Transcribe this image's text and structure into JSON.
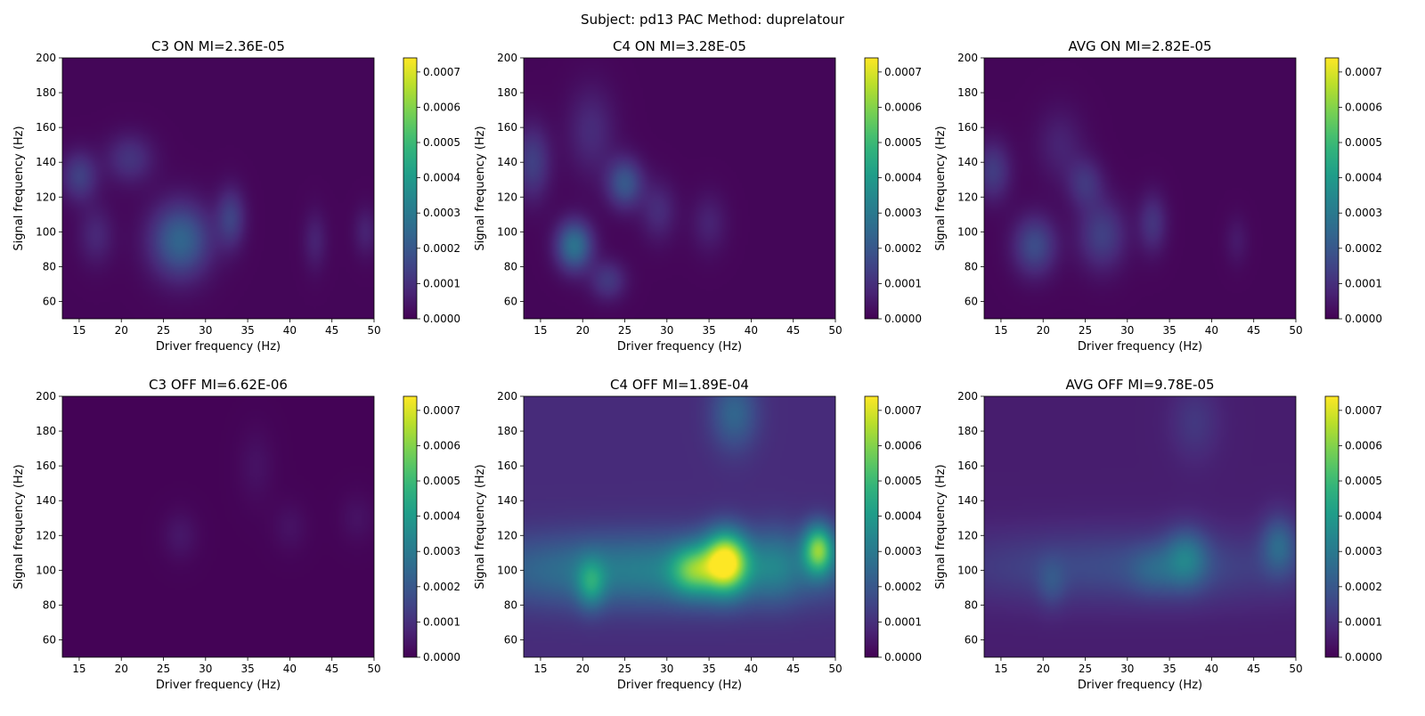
{
  "figure": {
    "suptitle": "Subject: pd13  PAC Method: duprelatour"
  },
  "chart_data": [
    {
      "type": "heatmap",
      "title": "C3 ON MI=2.36E-05",
      "xlabel": "Driver frequency (Hz)",
      "ylabel": "Signal frequency (Hz)",
      "xlim": [
        13,
        50
      ],
      "ylim": [
        50,
        200
      ],
      "xticks": [
        "15",
        "20",
        "25",
        "30",
        "35",
        "40",
        "45",
        "50"
      ],
      "yticks": [
        "60",
        "80",
        "100",
        "120",
        "140",
        "160",
        "180",
        "200"
      ],
      "colormap": "viridis",
      "clim": [
        0,
        0.00074
      ],
      "colorbar_ticks": [
        "0.0000",
        "0.0001",
        "0.0002",
        "0.0003",
        "0.0004",
        "0.0005",
        "0.0006",
        "0.0007"
      ],
      "base": 1e-05,
      "blobs": [
        {
          "x": 27,
          "y": 95,
          "sx": 2.5,
          "sy": 15,
          "v": 0.00023
        },
        {
          "x": 15,
          "y": 132,
          "sx": 1.5,
          "sy": 10,
          "v": 0.00013
        },
        {
          "x": 21,
          "y": 142,
          "sx": 2.0,
          "sy": 10,
          "v": 0.0001
        },
        {
          "x": 33,
          "y": 108,
          "sx": 1.2,
          "sy": 12,
          "v": 0.00013
        },
        {
          "x": 17,
          "y": 98,
          "sx": 1.5,
          "sy": 12,
          "v": 7e-05
        },
        {
          "x": 43,
          "y": 95,
          "sx": 1.0,
          "sy": 12,
          "v": 6e-05
        },
        {
          "x": 49,
          "y": 100,
          "sx": 1.0,
          "sy": 10,
          "v": 6e-05
        }
      ]
    },
    {
      "type": "heatmap",
      "title": "C4 ON MI=3.28E-05",
      "xlabel": "Driver frequency (Hz)",
      "ylabel": "Signal frequency (Hz)",
      "xlim": [
        13,
        50
      ],
      "ylim": [
        50,
        200
      ],
      "xticks": [
        "15",
        "20",
        "25",
        "30",
        "35",
        "40",
        "45",
        "50"
      ],
      "yticks": [
        "60",
        "80",
        "100",
        "120",
        "140",
        "160",
        "180",
        "200"
      ],
      "colormap": "viridis",
      "clim": [
        0,
        0.00074
      ],
      "colorbar_ticks": [
        "0.0000",
        "0.0001",
        "0.0002",
        "0.0003",
        "0.0004",
        "0.0005",
        "0.0006",
        "0.0007"
      ],
      "base": 1e-05,
      "blobs": [
        {
          "x": 19,
          "y": 92,
          "sx": 1.5,
          "sy": 10,
          "v": 0.00027
        },
        {
          "x": 25,
          "y": 128,
          "sx": 1.5,
          "sy": 10,
          "v": 0.00019
        },
        {
          "x": 14,
          "y": 140,
          "sx": 1.5,
          "sy": 15,
          "v": 0.00013
        },
        {
          "x": 23,
          "y": 72,
          "sx": 1.5,
          "sy": 8,
          "v": 0.00011
        },
        {
          "x": 21,
          "y": 158,
          "sx": 2.0,
          "sy": 18,
          "v": 8e-05
        },
        {
          "x": 29,
          "y": 112,
          "sx": 1.5,
          "sy": 12,
          "v": 8e-05
        },
        {
          "x": 35,
          "y": 105,
          "sx": 1.5,
          "sy": 12,
          "v": 6e-05
        }
      ]
    },
    {
      "type": "heatmap",
      "title": "AVG ON MI=2.82E-05",
      "xlabel": "Driver frequency (Hz)",
      "ylabel": "Signal frequency (Hz)",
      "xlim": [
        13,
        50
      ],
      "ylim": [
        50,
        200
      ],
      "xticks": [
        "15",
        "20",
        "25",
        "30",
        "35",
        "40",
        "45",
        "50"
      ],
      "yticks": [
        "60",
        "80",
        "100",
        "120",
        "140",
        "160",
        "180",
        "200"
      ],
      "colormap": "viridis",
      "clim": [
        0,
        0.00074
      ],
      "colorbar_ticks": [
        "0.0000",
        "0.0001",
        "0.0002",
        "0.0003",
        "0.0004",
        "0.0005",
        "0.0006",
        "0.0007"
      ],
      "base": 1e-05,
      "blobs": [
        {
          "x": 19,
          "y": 92,
          "sx": 1.8,
          "sy": 12,
          "v": 0.00016
        },
        {
          "x": 27,
          "y": 98,
          "sx": 2.0,
          "sy": 14,
          "v": 0.00013
        },
        {
          "x": 14,
          "y": 135,
          "sx": 1.5,
          "sy": 12,
          "v": 0.00012
        },
        {
          "x": 25,
          "y": 128,
          "sx": 1.5,
          "sy": 10,
          "v": 0.0001
        },
        {
          "x": 33,
          "y": 105,
          "sx": 1.2,
          "sy": 12,
          "v": 0.0001
        },
        {
          "x": 22,
          "y": 150,
          "sx": 2.0,
          "sy": 15,
          "v": 6e-05
        },
        {
          "x": 43,
          "y": 95,
          "sx": 1.0,
          "sy": 10,
          "v": 4e-05
        }
      ]
    },
    {
      "type": "heatmap",
      "title": "C3 OFF MI=6.62E-06",
      "xlabel": "Driver frequency (Hz)",
      "ylabel": "Signal frequency (Hz)",
      "xlim": [
        13,
        50
      ],
      "ylim": [
        50,
        200
      ],
      "xticks": [
        "15",
        "20",
        "25",
        "30",
        "35",
        "40",
        "45",
        "50"
      ],
      "yticks": [
        "60",
        "80",
        "100",
        "120",
        "140",
        "160",
        "180",
        "200"
      ],
      "colormap": "viridis",
      "clim": [
        0,
        0.00074
      ],
      "colorbar_ticks": [
        "0.0000",
        "0.0001",
        "0.0002",
        "0.0003",
        "0.0004",
        "0.0005",
        "0.0006",
        "0.0007"
      ],
      "base": 5e-06,
      "blobs": [
        {
          "x": 27,
          "y": 120,
          "sx": 1.5,
          "sy": 10,
          "v": 4e-05
        },
        {
          "x": 36,
          "y": 160,
          "sx": 1.5,
          "sy": 15,
          "v": 3e-05
        },
        {
          "x": 40,
          "y": 125,
          "sx": 1.5,
          "sy": 10,
          "v": 3e-05
        },
        {
          "x": 48,
          "y": 130,
          "sx": 1.5,
          "sy": 10,
          "v": 3e-05
        }
      ]
    },
    {
      "type": "heatmap",
      "title": "C4 OFF MI=1.89E-04",
      "xlabel": "Driver frequency (Hz)",
      "ylabel": "Signal frequency (Hz)",
      "xlim": [
        13,
        50
      ],
      "ylim": [
        50,
        200
      ],
      "xticks": [
        "15",
        "20",
        "25",
        "30",
        "35",
        "40",
        "45",
        "50"
      ],
      "yticks": [
        "60",
        "80",
        "100",
        "120",
        "140",
        "160",
        "180",
        "200"
      ],
      "colormap": "viridis",
      "clim": [
        0,
        0.00074
      ],
      "colorbar_ticks": [
        "0.0000",
        "0.0001",
        "0.0002",
        "0.0003",
        "0.0004",
        "0.0005",
        "0.0006",
        "0.0007"
      ],
      "base": 9e-05,
      "blobs": [
        {
          "x": 29,
          "y": 100,
          "sx": 16,
          "sy": 15,
          "v": 0.00023
        },
        {
          "x": 37,
          "y": 105,
          "sx": 1.8,
          "sy": 12,
          "v": 0.00055
        },
        {
          "x": 33,
          "y": 100,
          "sx": 1.8,
          "sy": 10,
          "v": 0.00027
        },
        {
          "x": 48,
          "y": 112,
          "sx": 1.3,
          "sy": 10,
          "v": 0.00045
        },
        {
          "x": 21,
          "y": 92,
          "sx": 1.2,
          "sy": 10,
          "v": 0.0002
        },
        {
          "x": 38,
          "y": 190,
          "sx": 2.0,
          "sy": 15,
          "v": 0.00015
        },
        {
          "x": 43,
          "y": 105,
          "sx": 2.0,
          "sy": 15,
          "v": 0.0001
        }
      ]
    },
    {
      "type": "heatmap",
      "title": "AVG OFF MI=9.78E-05",
      "xlabel": "Driver frequency (Hz)",
      "ylabel": "Signal frequency (Hz)",
      "xlim": [
        13,
        50
      ],
      "ylim": [
        50,
        200
      ],
      "xticks": [
        "15",
        "20",
        "25",
        "30",
        "35",
        "40",
        "45",
        "50"
      ],
      "yticks": [
        "60",
        "80",
        "100",
        "120",
        "140",
        "160",
        "180",
        "200"
      ],
      "colormap": "viridis",
      "clim": [
        0,
        0.00074
      ],
      "colorbar_ticks": [
        "0.0000",
        "0.0001",
        "0.0002",
        "0.0003",
        "0.0004",
        "0.0005",
        "0.0006",
        "0.0007"
      ],
      "base": 6e-05,
      "blobs": [
        {
          "x": 30,
          "y": 102,
          "sx": 16,
          "sy": 15,
          "v": 0.00011
        },
        {
          "x": 37,
          "y": 107,
          "sx": 1.8,
          "sy": 12,
          "v": 0.00018
        },
        {
          "x": 48,
          "y": 115,
          "sx": 1.5,
          "sy": 12,
          "v": 0.00016
        },
        {
          "x": 33,
          "y": 100,
          "sx": 2.0,
          "sy": 10,
          "v": 8e-05
        },
        {
          "x": 21,
          "y": 92,
          "sx": 1.2,
          "sy": 10,
          "v": 7e-05
        },
        {
          "x": 38,
          "y": 185,
          "sx": 2.0,
          "sy": 15,
          "v": 6e-05
        }
      ]
    }
  ]
}
